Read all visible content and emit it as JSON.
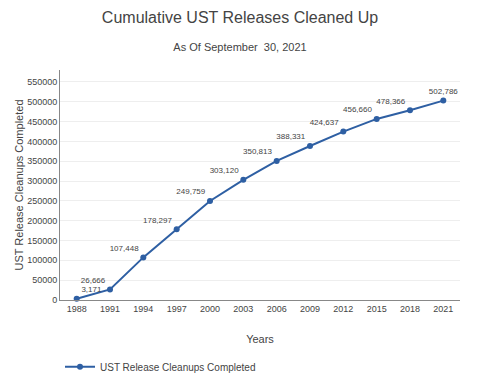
{
  "chart_data": {
    "type": "line",
    "title": "Cumulative UST Releases Cleaned Up",
    "subtitle": "As Of September  30, 2021",
    "xlabel": "Years",
    "ylabel": "UST Release Cleanups Completed",
    "x": [
      1988,
      1991,
      1994,
      1997,
      2000,
      2003,
      2006,
      2009,
      2012,
      2015,
      2018,
      2021
    ],
    "series": [
      {
        "name": "UST Release Cleanups Completed",
        "color": "#2E5FA3",
        "values": [
          3171,
          26666,
          107448,
          178297,
          249759,
          303120,
          350813,
          388331,
          424637,
          456660,
          478366,
          502786
        ],
        "value_labels": [
          "3,171",
          "26,666",
          "107,448",
          "178,297",
          "249,759",
          "303,120",
          "350,813",
          "388,331",
          "424,637",
          "456,660",
          "478,366",
          "502,786"
        ],
        "marker": "circle",
        "line_style": "solid"
      }
    ],
    "data_labels": true,
    "xlim": [
      1986.5,
      2022.5
    ],
    "xticks": [
      1988,
      1991,
      1994,
      1997,
      2000,
      2003,
      2006,
      2009,
      2012,
      2015,
      2018,
      2021
    ],
    "ylim": [
      0,
      580000
    ],
    "yticks": [
      0,
      50000,
      100000,
      150000,
      200000,
      250000,
      300000,
      350000,
      400000,
      450000,
      500000,
      550000
    ],
    "grid": "y",
    "legend": "lower left"
  }
}
